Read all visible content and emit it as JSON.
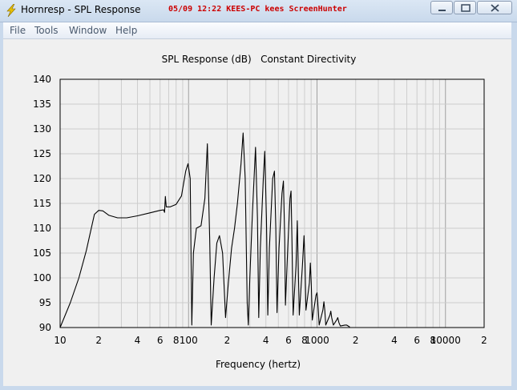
{
  "window": {
    "title": "Hornresp - SPL Response",
    "overlay_text": "05/09 12:22 KEES-PC kees ScreenHunter",
    "accent_color": "#cc0000",
    "icon": "lightning-bolt-icon"
  },
  "menu": {
    "items": [
      "File",
      "Tools",
      "Window",
      "Help"
    ]
  },
  "chart_data": {
    "type": "line",
    "title": "SPL Response (dB)   Constant Directivity",
    "xlabel": "Frequency (hertz)",
    "ylabel": "",
    "x_scale": "log",
    "xlim": [
      10,
      20000
    ],
    "ylim": [
      90,
      140
    ],
    "y_ticks": [
      140,
      135,
      130,
      125,
      120,
      115,
      110,
      105,
      100,
      95,
      90
    ],
    "x_tick_values": [
      10,
      20,
      40,
      60,
      80,
      100,
      200,
      400,
      600,
      800,
      1000,
      2000,
      4000,
      6000,
      8000,
      10000,
      20000
    ],
    "x_tick_labels": [
      "10",
      "2",
      "4",
      "6",
      "8",
      "100",
      "2",
      "4",
      "6",
      "8",
      "1000",
      "2",
      "4",
      "6",
      "8",
      "10000",
      "2"
    ],
    "grid": true,
    "series": [
      {
        "color": "#000000",
        "points": [
          [
            10,
            90
          ],
          [
            12,
            95
          ],
          [
            14,
            100
          ],
          [
            16,
            105.5
          ],
          [
            17.5,
            110
          ],
          [
            18.5,
            112.8
          ],
          [
            20,
            113.6
          ],
          [
            21.5,
            113.5
          ],
          [
            24,
            112.6
          ],
          [
            28,
            112.1
          ],
          [
            33,
            112.1
          ],
          [
            40,
            112.5
          ],
          [
            50,
            113.1
          ],
          [
            60,
            113.6
          ],
          [
            64,
            113.7
          ],
          [
            65,
            113.2
          ],
          [
            66,
            116.4
          ],
          [
            67,
            114.3
          ],
          [
            72,
            114.3
          ],
          [
            80,
            114.8
          ],
          [
            88,
            116.5
          ],
          [
            95,
            121.5
          ],
          [
            99,
            123
          ],
          [
            103,
            120
          ],
          [
            106,
            90.5
          ],
          [
            109,
            105
          ],
          [
            115,
            110
          ],
          [
            125,
            110.5
          ],
          [
            134,
            116
          ],
          [
            140,
            127
          ],
          [
            146,
            108
          ],
          [
            150,
            90.5
          ],
          [
            158,
            100
          ],
          [
            166,
            107
          ],
          [
            174,
            108.5
          ],
          [
            184,
            105
          ],
          [
            194,
            92
          ],
          [
            204,
            99
          ],
          [
            216,
            106
          ],
          [
            228,
            110
          ],
          [
            240,
            115
          ],
          [
            256,
            123
          ],
          [
            266,
            129.2
          ],
          [
            276,
            120
          ],
          [
            286,
            95
          ],
          [
            292,
            90.5
          ],
          [
            300,
            100
          ],
          [
            314,
            113
          ],
          [
            332,
            126.3
          ],
          [
            344,
            112
          ],
          [
            352,
            92
          ],
          [
            362,
            106
          ],
          [
            382,
            120
          ],
          [
            392,
            125.5
          ],
          [
            404,
            112
          ],
          [
            414,
            92.5
          ],
          [
            426,
            106
          ],
          [
            452,
            120
          ],
          [
            466,
            121.5
          ],
          [
            478,
            110
          ],
          [
            488,
            93
          ],
          [
            506,
            106
          ],
          [
            534,
            117
          ],
          [
            548,
            119.5
          ],
          [
            560,
            108
          ],
          [
            568,
            94.5
          ],
          [
            592,
            106
          ],
          [
            616,
            116
          ],
          [
            628,
            117.5
          ],
          [
            638,
            108
          ],
          [
            652,
            92.5
          ],
          [
            686,
            102.5
          ],
          [
            702,
            111.5
          ],
          [
            718,
            100
          ],
          [
            728,
            92.5
          ],
          [
            770,
            102.5
          ],
          [
            792,
            108.5
          ],
          [
            806,
            103
          ],
          [
            820,
            93.5
          ],
          [
            872,
            99
          ],
          [
            888,
            103
          ],
          [
            902,
            99
          ],
          [
            918,
            91.5
          ],
          [
            982,
            96.5
          ],
          [
            1000,
            97
          ],
          [
            1020,
            94
          ],
          [
            1040,
            90.5
          ],
          [
            1110,
            93.5
          ],
          [
            1132,
            95.2
          ],
          [
            1150,
            93.5
          ],
          [
            1170,
            90.5
          ],
          [
            1260,
            92.5
          ],
          [
            1280,
            93.3
          ],
          [
            1300,
            92
          ],
          [
            1340,
            90.5
          ],
          [
            1420,
            91.5
          ],
          [
            1450,
            92
          ],
          [
            1480,
            91
          ],
          [
            1520,
            90.3
          ],
          [
            1650,
            90.5
          ],
          [
            1700,
            90.5
          ],
          [
            1800,
            90.1
          ]
        ]
      }
    ]
  }
}
